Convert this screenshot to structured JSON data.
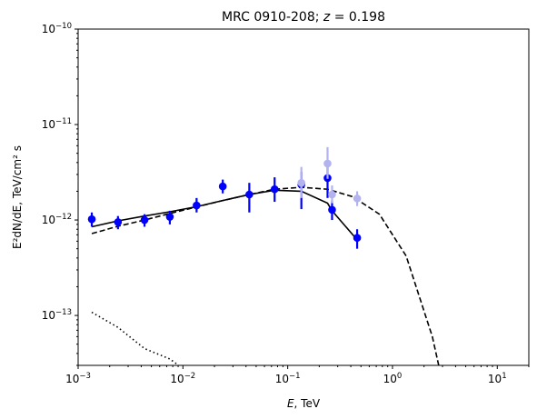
{
  "chart_data": {
    "type": "scatter",
    "title_text": "MRC 0910-208; ",
    "title_math_var": "z",
    "title_math_rest": " = 0.198",
    "xlabel_var": "E",
    "xlabel_rest": ", TeV",
    "ylabel": "E²dN/dE, TeV/cm² s",
    "xscale": "log",
    "yscale": "log",
    "xlim": [
      0.001,
      20
    ],
    "ylim": [
      3e-14,
      1e-10
    ],
    "x_ticks": [
      {
        "value": 0.001,
        "base": "10",
        "exp": "−3"
      },
      {
        "value": 0.01,
        "base": "10",
        "exp": "−2"
      },
      {
        "value": 0.1,
        "base": "10",
        "exp": "−1"
      },
      {
        "value": 1,
        "base": "10",
        "exp": "0"
      },
      {
        "value": 10,
        "base": "10",
        "exp": "1"
      }
    ],
    "y_ticks": [
      {
        "value": 1e-13,
        "base": "10",
        "exp": "−13"
      },
      {
        "value": 1e-12,
        "base": "10",
        "exp": "−12"
      },
      {
        "value": 1e-11,
        "base": "10",
        "exp": "−11"
      },
      {
        "value": 1e-10,
        "base": "10",
        "exp": "−10"
      }
    ],
    "grid": false,
    "colors": {
      "points": "#0000ff",
      "faint_points": "#b3b3f0",
      "lines": "#000000"
    },
    "series": [
      {
        "style": "errorbar-points",
        "points": [
          {
            "x": 0.00135,
            "y": 1.02e-12,
            "lo": 8.5e-13,
            "hi": 1.2e-12
          },
          {
            "x": 0.0024,
            "y": 9.5e-13,
            "lo": 8e-13,
            "hi": 1.1e-12
          },
          {
            "x": 0.0043,
            "y": 1e-12,
            "lo": 8.5e-13,
            "hi": 1.15e-12
          },
          {
            "x": 0.0075,
            "y": 1.08e-12,
            "lo": 9e-13,
            "hi": 1.25e-12
          },
          {
            "x": 0.0135,
            "y": 1.42e-12,
            "lo": 1.2e-12,
            "hi": 1.7e-12
          },
          {
            "x": 0.024,
            "y": 2.25e-12,
            "lo": 1.9e-12,
            "hi": 2.65e-12
          },
          {
            "x": 0.043,
            "y": 1.85e-12,
            "lo": 1.2e-12,
            "hi": 2.45e-12
          },
          {
            "x": 0.075,
            "y": 2.1e-12,
            "lo": 1.55e-12,
            "hi": 2.8e-12
          },
          {
            "x": 0.135,
            "y": 2.35e-12,
            "lo": 1.3e-12,
            "hi": 3.2e-12
          },
          {
            "x": 0.24,
            "y": 2.75e-12,
            "lo": 1.7e-12,
            "hi": 4e-12
          },
          {
            "x": 0.265,
            "y": 1.28e-12,
            "lo": 1e-12,
            "hi": 1.6e-12
          },
          {
            "x": 0.46,
            "y": 6.5e-13,
            "lo": 5e-13,
            "hi": 8e-13
          }
        ]
      },
      {
        "style": "faint-errorbar-points",
        "points": [
          {
            "x": 0.135,
            "y": 2.45e-12,
            "lo": 1.7e-12,
            "hi": 3.6e-12
          },
          {
            "x": 0.24,
            "y": 3.9e-12,
            "lo": 2.7e-12,
            "hi": 5.8e-12
          },
          {
            "x": 0.265,
            "y": 1.85e-12,
            "lo": 1.5e-12,
            "hi": 2.3e-12
          },
          {
            "x": 0.46,
            "y": 1.68e-12,
            "lo": 1.4e-12,
            "hi": 2e-12
          }
        ]
      },
      {
        "style": "solid",
        "x": [
          0.00135,
          0.0024,
          0.0043,
          0.0075,
          0.0135,
          0.024,
          0.043,
          0.075,
          0.135,
          0.24,
          0.265,
          0.46
        ],
        "y": [
          8.5e-13,
          9.8e-13,
          1.1e-12,
          1.22e-12,
          1.38e-12,
          1.6e-12,
          1.85e-12,
          2.05e-12,
          2e-12,
          1.5e-12,
          1.25e-12,
          6.2e-13
        ]
      },
      {
        "style": "dashed",
        "x": [
          0.00135,
          0.0024,
          0.0043,
          0.0075,
          0.0135,
          0.024,
          0.043,
          0.075,
          0.135,
          0.24,
          0.42,
          0.75,
          1.35,
          2.4,
          2.8
        ],
        "y": [
          7.2e-13,
          8.6e-13,
          1e-12,
          1.17e-12,
          1.37e-12,
          1.6e-12,
          1.85e-12,
          2.1e-12,
          2.2e-12,
          2.1e-12,
          1.75e-12,
          1.15e-12,
          4.2e-13,
          6e-14,
          2.8e-14
        ]
      },
      {
        "style": "dotted",
        "x": [
          0.00135,
          0.0024,
          0.0043,
          0.0075,
          0.0095
        ],
        "y": [
          1.08e-13,
          7.5e-14,
          4.5e-14,
          3.5e-14,
          2.9e-14
        ]
      }
    ]
  }
}
